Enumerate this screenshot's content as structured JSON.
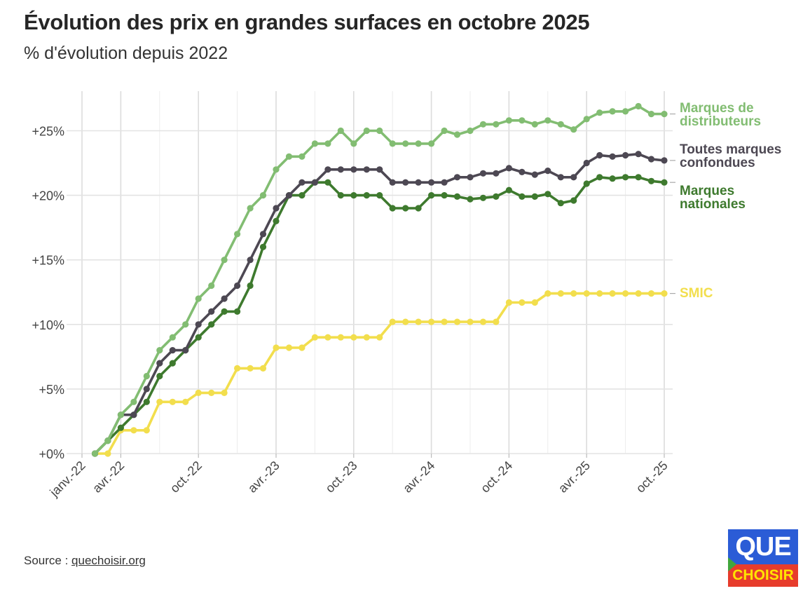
{
  "title": "Évolution des prix en grandes surfaces en octobre 2025",
  "subtitle": "% d'évolution depuis 2022",
  "source": {
    "prefix": "Source : ",
    "link": "quechoisir.org"
  },
  "logo": {
    "top": "QUE",
    "bottom": "CHOISIR"
  },
  "chart_data": {
    "type": "line",
    "title": "Évolution des prix en grandes surfaces en octobre 2025",
    "subtitle": "% d'évolution depuis 2022",
    "x_start": "2022-01",
    "x_end": "2025-10",
    "x": [
      "2022-02",
      "2022-03",
      "2022-04",
      "2022-05",
      "2022-06",
      "2022-07",
      "2022-08",
      "2022-09",
      "2022-10",
      "2022-11",
      "2022-12",
      "2023-01",
      "2023-02",
      "2023-03",
      "2023-04",
      "2023-05",
      "2023-06",
      "2023-07",
      "2023-08",
      "2023-09",
      "2023-10",
      "2023-11",
      "2023-12",
      "2024-01",
      "2024-02",
      "2024-03",
      "2024-04",
      "2024-05",
      "2024-06",
      "2024-07",
      "2024-08",
      "2024-09",
      "2024-10",
      "2024-11",
      "2024-12",
      "2025-01",
      "2025-02",
      "2025-03",
      "2025-04",
      "2025-05",
      "2025-06",
      "2025-07",
      "2025-08",
      "2025-09",
      "2025-10"
    ],
    "x_ticks": [
      {
        "date": "2022-01",
        "label": "janv.-22"
      },
      {
        "date": "2022-04",
        "label": "avr.-22"
      },
      {
        "date": "2022-10",
        "label": "oct.-22"
      },
      {
        "date": "2023-04",
        "label": "avr.-23"
      },
      {
        "date": "2023-10",
        "label": "oct.-23"
      },
      {
        "date": "2024-04",
        "label": "avr.-24"
      },
      {
        "date": "2024-10",
        "label": "oct.-24"
      },
      {
        "date": "2025-04",
        "label": "avr.-25"
      },
      {
        "date": "2025-10",
        "label": "oct.-25"
      }
    ],
    "y_ticks": [
      {
        "value": 0,
        "label": "+0%"
      },
      {
        "value": 5,
        "label": "+5%"
      },
      {
        "value": 10,
        "label": "+10%"
      },
      {
        "value": 15,
        "label": "+15%"
      },
      {
        "value": 20,
        "label": "+20%"
      },
      {
        "value": 25,
        "label": "+25%"
      }
    ],
    "ylim": [
      0,
      27
    ],
    "grid": true,
    "legend_placement": "right",
    "series": [
      {
        "name": "SMIC",
        "label_lines": [
          "SMIC"
        ],
        "color": "#f2de4d",
        "values": [
          0,
          0,
          1.8,
          1.8,
          1.8,
          4,
          4,
          4,
          4.7,
          4.7,
          4.7,
          6.6,
          6.6,
          6.6,
          8.2,
          8.2,
          8.2,
          9,
          9,
          9,
          9,
          9,
          9,
          10.2,
          10.2,
          10.2,
          10.2,
          10.2,
          10.2,
          10.2,
          10.2,
          10.2,
          11.7,
          11.7,
          11.7,
          12.4,
          12.4,
          12.4,
          12.4,
          12.4,
          12.4,
          12.4,
          12.4,
          12.4,
          12.4
        ]
      },
      {
        "name": "Marques nationales",
        "label_lines": [
          "Marques",
          "nationales"
        ],
        "color": "#3e7a2e",
        "values": [
          0,
          1,
          2,
          3,
          4,
          6,
          7,
          8,
          9,
          10,
          11,
          11,
          13,
          16,
          18,
          20,
          20,
          21,
          21,
          20,
          20,
          20,
          20,
          19,
          19,
          19,
          20,
          20,
          19.9,
          19.7,
          19.8,
          19.9,
          20.4,
          19.9,
          19.9,
          20.1,
          19.4,
          19.6,
          20.9,
          21.4,
          21.3,
          21.4,
          21.4,
          21.1,
          21
        ]
      },
      {
        "name": "Toutes marques confondues",
        "label_lines": [
          "Toutes marques",
          "confondues"
        ],
        "color": "#4d4853",
        "values": [
          0,
          1,
          3,
          3,
          5,
          7,
          8,
          8,
          10,
          11,
          12,
          13,
          15,
          17,
          19,
          20,
          21,
          21,
          22,
          22,
          22,
          22,
          22,
          21,
          21,
          21,
          21,
          21,
          21.4,
          21.4,
          21.7,
          21.7,
          22.1,
          21.8,
          21.6,
          21.9,
          21.4,
          21.4,
          22.5,
          23.1,
          23,
          23.1,
          23.2,
          22.8,
          22.7
        ]
      },
      {
        "name": "Marques de distributeurs",
        "label_lines": [
          "Marques de",
          "distributeurs"
        ],
        "color": "#82bd72",
        "values": [
          0,
          1,
          3,
          4,
          6,
          8,
          9,
          10,
          12,
          13,
          15,
          17,
          19,
          20,
          22,
          23,
          23,
          24,
          24,
          25,
          24,
          25,
          25,
          24,
          24,
          24,
          24,
          25,
          24.7,
          25,
          25.5,
          25.5,
          25.8,
          25.8,
          25.5,
          25.8,
          25.5,
          25.1,
          25.9,
          26.4,
          26.5,
          26.5,
          26.9,
          26.3,
          26.3
        ]
      }
    ]
  }
}
